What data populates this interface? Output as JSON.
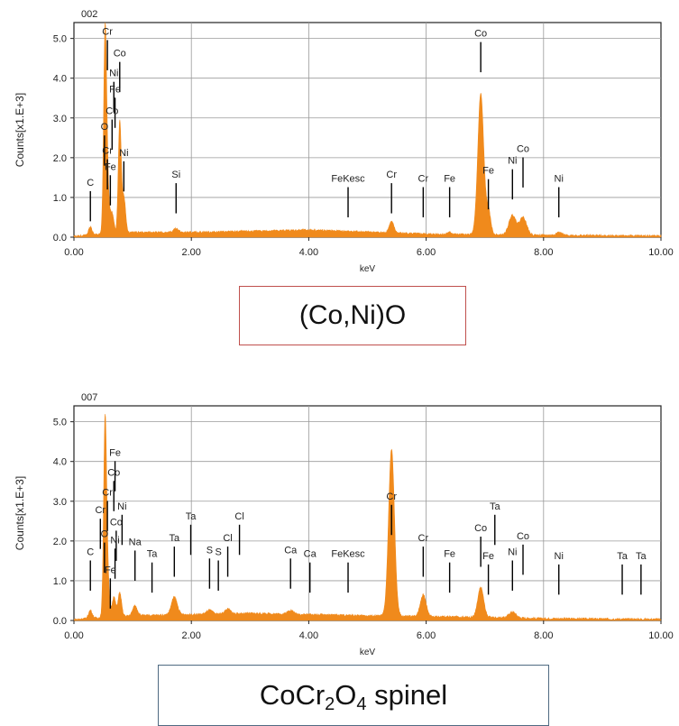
{
  "colors": {
    "spectrum": "#f08a1c",
    "frame": "#222222",
    "grid": "#9a9a9a",
    "marker": "#000000"
  },
  "captions": [
    {
      "text": "(Co,Ni)O"
    },
    {
      "prefix": "CoCr",
      "sub1": "2",
      "mid": "O",
      "sub2": "4",
      "suffix": " spinel"
    }
  ],
  "chart_data": [
    {
      "type": "line",
      "title": "002",
      "xlabel": "keV",
      "ylabel": "Counts[x1.E+3]",
      "xlim": [
        0,
        10
      ],
      "ylim": [
        0,
        5.4
      ],
      "grid": true,
      "xticks": [
        0,
        2,
        4,
        6,
        8,
        10
      ],
      "xtick_labels": [
        "0.00",
        "2.00",
        "4.00",
        "6.00",
        "8.00",
        "10.00"
      ],
      "yticks": [
        0,
        1,
        2,
        3,
        4,
        5
      ],
      "ytick_labels": [
        "0.0",
        "1.0",
        "2.0",
        "3.0",
        "4.0",
        "5.0"
      ],
      "baseline": [
        [
          0,
          0.02
        ],
        [
          0.2,
          0.05
        ],
        [
          1.0,
          0.12
        ],
        [
          2.0,
          0.12
        ],
        [
          3.0,
          0.15
        ],
        [
          4.0,
          0.18
        ],
        [
          5.0,
          0.13
        ],
        [
          6.0,
          0.08
        ],
        [
          7.0,
          0.06
        ],
        [
          8.0,
          0.05
        ],
        [
          9.0,
          0.04
        ],
        [
          10.0,
          0.03
        ]
      ],
      "peaks": [
        {
          "x": 0.28,
          "h": 0.2,
          "w": 0.03
        },
        {
          "x": 0.53,
          "h": 4.8,
          "w": 0.025
        },
        {
          "x": 0.57,
          "h": 1.2,
          "w": 0.03
        },
        {
          "x": 0.65,
          "h": 0.5,
          "w": 0.03
        },
        {
          "x": 0.78,
          "h": 2.8,
          "w": 0.025
        },
        {
          "x": 0.85,
          "h": 0.9,
          "w": 0.03
        },
        {
          "x": 1.74,
          "h": 0.1,
          "w": 0.04
        },
        {
          "x": 5.41,
          "h": 0.28,
          "w": 0.04
        },
        {
          "x": 6.4,
          "h": 0.05,
          "w": 0.04
        },
        {
          "x": 6.93,
          "h": 3.55,
          "w": 0.05
        },
        {
          "x": 7.06,
          "h": 0.6,
          "w": 0.04
        },
        {
          "x": 7.47,
          "h": 0.5,
          "w": 0.06
        },
        {
          "x": 7.65,
          "h": 0.45,
          "w": 0.06
        },
        {
          "x": 8.26,
          "h": 0.07,
          "w": 0.05
        }
      ],
      "annotations": [
        {
          "label": "C",
          "x": 0.28,
          "y": 1.25
        },
        {
          "label": "Cr",
          "x": 0.57,
          "y": 5.05
        },
        {
          "label": "Co",
          "x": 0.78,
          "y": 4.5
        },
        {
          "label": "Ni",
          "x": 0.68,
          "y": 4.0
        },
        {
          "label": "Fe",
          "x": 0.7,
          "y": 3.6
        },
        {
          "label": "Co",
          "x": 0.65,
          "y": 3.05
        },
        {
          "label": "O",
          "x": 0.52,
          "y": 2.65
        },
        {
          "label": "Cr",
          "x": 0.57,
          "y": 2.05
        },
        {
          "label": "Ni",
          "x": 0.85,
          "y": 2.0
        },
        {
          "label": "Fe",
          "x": 0.62,
          "y": 1.65
        },
        {
          "label": "Si",
          "x": 1.74,
          "y": 1.45
        },
        {
          "label": "FeKesc",
          "x": 4.67,
          "y": 1.35
        },
        {
          "label": "Cr",
          "x": 5.41,
          "y": 1.45
        },
        {
          "label": "Cr",
          "x": 5.95,
          "y": 1.35
        },
        {
          "label": "Fe",
          "x": 6.4,
          "y": 1.35
        },
        {
          "label": "Co",
          "x": 6.93,
          "y": 5.0
        },
        {
          "label": "Fe",
          "x": 7.06,
          "y": 1.55
        },
        {
          "label": "Ni",
          "x": 7.47,
          "y": 1.8
        },
        {
          "label": "Co",
          "x": 7.65,
          "y": 2.1
        },
        {
          "label": "Ni",
          "x": 8.26,
          "y": 1.35
        }
      ]
    },
    {
      "type": "line",
      "title": "007",
      "xlabel": "keV",
      "ylabel": "Counts[x1.E+3]",
      "xlim": [
        0,
        10
      ],
      "ylim": [
        0,
        5.4
      ],
      "grid": true,
      "xticks": [
        0,
        2,
        4,
        6,
        8,
        10
      ],
      "xtick_labels": [
        "0.00",
        "2.00",
        "4.00",
        "6.00",
        "8.00",
        "10.00"
      ],
      "yticks": [
        0,
        1,
        2,
        3,
        4,
        5
      ],
      "ytick_labels": [
        "0.0",
        "1.0",
        "2.0",
        "3.0",
        "4.0",
        "5.0"
      ],
      "baseline": [
        [
          0,
          0.02
        ],
        [
          0.2,
          0.05
        ],
        [
          1.0,
          0.12
        ],
        [
          2.0,
          0.15
        ],
        [
          3.0,
          0.18
        ],
        [
          4.0,
          0.15
        ],
        [
          5.0,
          0.12
        ],
        [
          6.0,
          0.1
        ],
        [
          7.0,
          0.08
        ],
        [
          8.0,
          0.05
        ],
        [
          9.0,
          0.04
        ],
        [
          10.0,
          0.03
        ]
      ],
      "peaks": [
        {
          "x": 0.28,
          "h": 0.2,
          "w": 0.03
        },
        {
          "x": 0.53,
          "h": 4.7,
          "w": 0.025
        },
        {
          "x": 0.57,
          "h": 1.0,
          "w": 0.03
        },
        {
          "x": 0.68,
          "h": 0.5,
          "w": 0.03
        },
        {
          "x": 0.78,
          "h": 0.6,
          "w": 0.03
        },
        {
          "x": 1.04,
          "h": 0.25,
          "w": 0.04
        },
        {
          "x": 1.71,
          "h": 0.45,
          "w": 0.05
        },
        {
          "x": 2.31,
          "h": 0.1,
          "w": 0.05
        },
        {
          "x": 2.62,
          "h": 0.12,
          "w": 0.05
        },
        {
          "x": 3.69,
          "h": 0.1,
          "w": 0.05
        },
        {
          "x": 5.41,
          "h": 4.2,
          "w": 0.05
        },
        {
          "x": 5.95,
          "h": 0.55,
          "w": 0.05
        },
        {
          "x": 6.93,
          "h": 0.75,
          "w": 0.05
        },
        {
          "x": 7.47,
          "h": 0.15,
          "w": 0.06
        }
      ],
      "annotations": [
        {
          "label": "C",
          "x": 0.28,
          "y": 1.6
        },
        {
          "label": "Fe",
          "x": 0.7,
          "y": 4.1
        },
        {
          "label": "Co",
          "x": 0.68,
          "y": 3.6
        },
        {
          "label": "Cr",
          "x": 0.57,
          "y": 3.1
        },
        {
          "label": "Ni",
          "x": 0.82,
          "y": 2.75
        },
        {
          "label": "Cr",
          "x": 0.45,
          "y": 2.65
        },
        {
          "label": "Co",
          "x": 0.72,
          "y": 2.35
        },
        {
          "label": "O",
          "x": 0.52,
          "y": 2.05
        },
        {
          "label": "Ni",
          "x": 0.7,
          "y": 1.9
        },
        {
          "label": "Fe",
          "x": 0.62,
          "y": 1.15
        },
        {
          "label": "Na",
          "x": 1.04,
          "y": 1.85
        },
        {
          "label": "Ta",
          "x": 1.33,
          "y": 1.55
        },
        {
          "label": "Ta",
          "x": 1.71,
          "y": 1.95
        },
        {
          "label": "Ta",
          "x": 1.99,
          "y": 2.5
        },
        {
          "label": "S",
          "x": 2.31,
          "y": 1.65
        },
        {
          "label": "S",
          "x": 2.46,
          "y": 1.6
        },
        {
          "label": "Cl",
          "x": 2.62,
          "y": 1.95
        },
        {
          "label": "Cl",
          "x": 2.82,
          "y": 2.5
        },
        {
          "label": "Ca",
          "x": 3.69,
          "y": 1.65
        },
        {
          "label": "Ca",
          "x": 4.02,
          "y": 1.55
        },
        {
          "label": "FeKesc",
          "x": 4.67,
          "y": 1.55
        },
        {
          "label": "Cr",
          "x": 5.41,
          "y": 3.0
        },
        {
          "label": "Cr",
          "x": 5.95,
          "y": 1.95
        },
        {
          "label": "Fe",
          "x": 6.4,
          "y": 1.55
        },
        {
          "label": "Co",
          "x": 6.93,
          "y": 2.2
        },
        {
          "label": "Ta",
          "x": 7.17,
          "y": 2.75
        },
        {
          "label": "Fe",
          "x": 7.06,
          "y": 1.5
        },
        {
          "label": "Ni",
          "x": 7.47,
          "y": 1.6
        },
        {
          "label": "Co",
          "x": 7.65,
          "y": 2.0
        },
        {
          "label": "Ni",
          "x": 8.26,
          "y": 1.5
        },
        {
          "label": "Ta",
          "x": 9.34,
          "y": 1.5
        },
        {
          "label": "Ta",
          "x": 9.66,
          "y": 1.5
        }
      ]
    }
  ]
}
